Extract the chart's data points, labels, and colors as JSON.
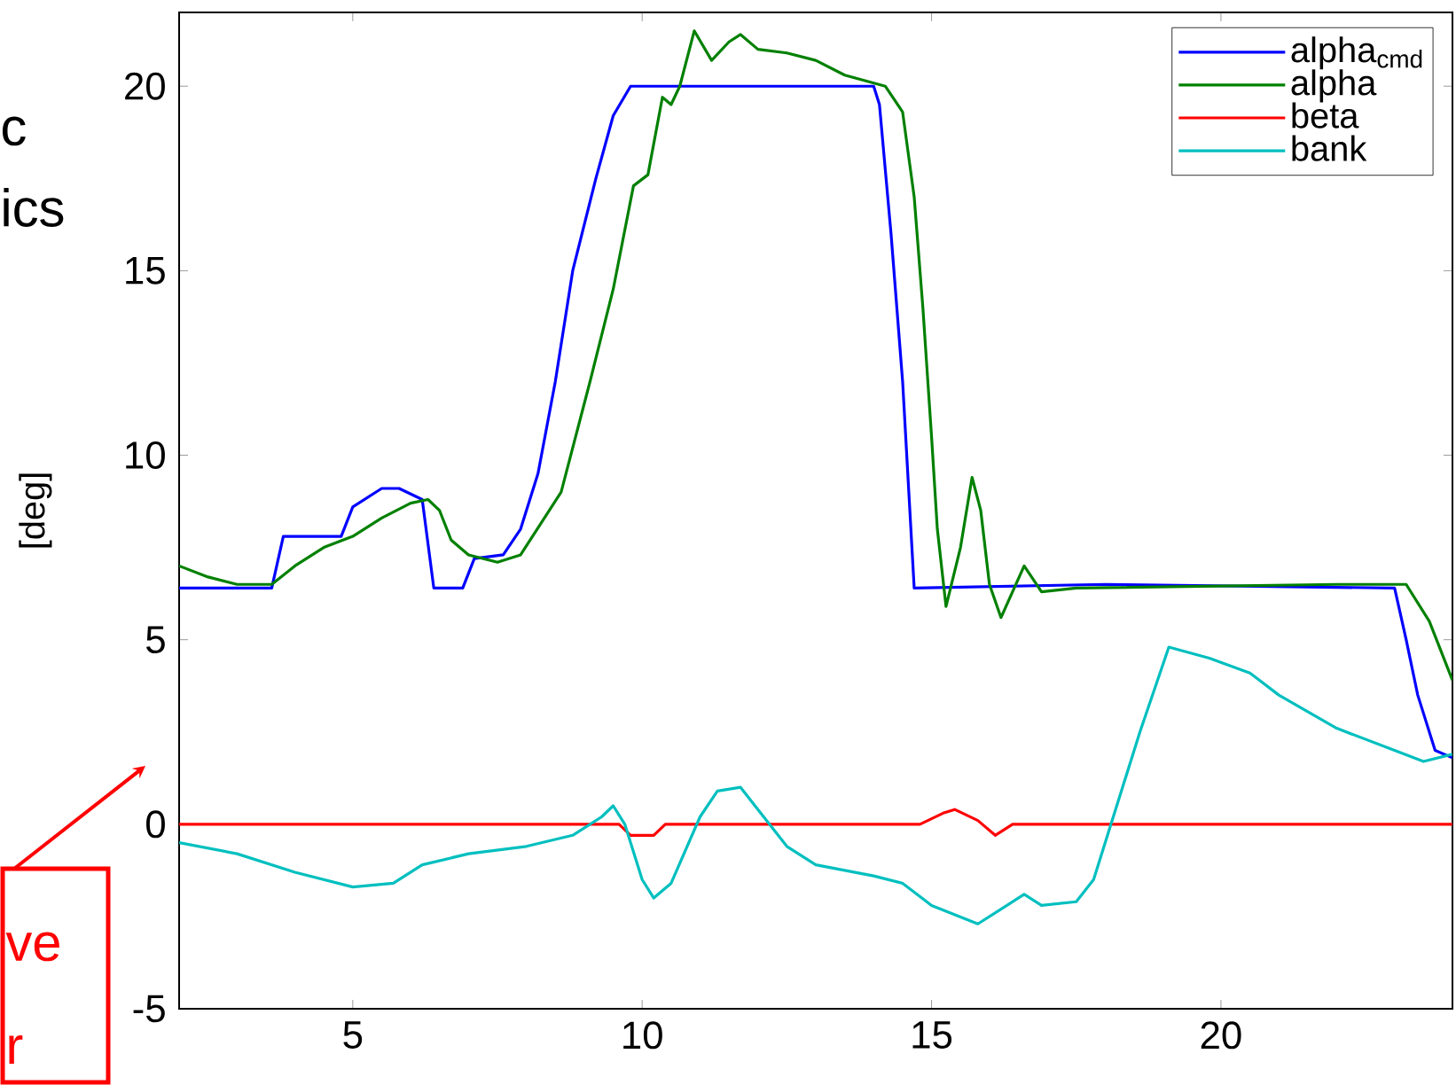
{
  "chart_data": {
    "type": "line",
    "ylabel": "[deg]",
    "xlim": [
      2,
      24
    ],
    "xticks": [
      5,
      10,
      15,
      20
    ],
    "ylim": [
      -5,
      22
    ],
    "yticks": [
      -5,
      0,
      5,
      10,
      15,
      20
    ],
    "legend": "top right",
    "grid": false,
    "annotations": [
      "c",
      "ics",
      "ve",
      "r"
    ],
    "series": [
      {
        "name": "alpha$_{cmd}$",
        "color": "#0000ff",
        "x": [
          2,
          3.6,
          3.8,
          4.8,
          5.0,
          5.5,
          5.8,
          6.2,
          6.4,
          6.9,
          7.1,
          7.6,
          7.9,
          8.2,
          8.5,
          8.8,
          9.2,
          9.5,
          9.8,
          14.0,
          14.1,
          14.3,
          14.5,
          14.7,
          18,
          23.0,
          23.2,
          23.4,
          23.7,
          24
        ],
        "values": [
          6.4,
          6.4,
          7.8,
          7.8,
          8.6,
          9.1,
          9.1,
          8.8,
          6.4,
          6.4,
          7.2,
          7.3,
          8.0,
          9.5,
          12,
          15,
          17.5,
          19.2,
          20,
          20,
          19.5,
          16,
          12,
          6.4,
          6.5,
          6.4,
          5,
          3.5,
          2.0,
          1.8
        ]
      },
      {
        "name": "alpha",
        "color": "#008000",
        "x": [
          2,
          2.5,
          3.0,
          3.6,
          4.0,
          4.5,
          5.0,
          5.5,
          6.0,
          6.3,
          6.5,
          6.7,
          7.0,
          7.5,
          7.9,
          8.6,
          9.1,
          9.5,
          9.85,
          10.1,
          10.35,
          10.5,
          10.65,
          10.9,
          11.2,
          11.5,
          11.7,
          12.0,
          12.5,
          13.0,
          13.5,
          14.2,
          14.5,
          14.7,
          14.85,
          15.0,
          15.1,
          15.25,
          15.5,
          15.7,
          15.85,
          16.0,
          16.2,
          16.4,
          16.6,
          16.9,
          17.5,
          22,
          23.2,
          23.6,
          24
        ],
        "values": [
          7.0,
          6.7,
          6.5,
          6.5,
          7.0,
          7.5,
          7.8,
          8.3,
          8.7,
          8.8,
          8.5,
          7.7,
          7.3,
          7.1,
          7.3,
          9,
          12,
          14.5,
          17.3,
          17.6,
          19.7,
          19.5,
          20,
          21.5,
          20.7,
          21.2,
          21.4,
          21.0,
          20.9,
          20.7,
          20.3,
          20.0,
          19.3,
          17,
          14,
          10.5,
          8,
          5.9,
          7.5,
          9.4,
          8.5,
          6.5,
          5.6,
          6.3,
          7.0,
          6.3,
          6.4,
          6.5,
          6.5,
          5.5,
          3.9
        ]
      },
      {
        "name": "beta",
        "color": "#ff0000",
        "x": [
          2,
          9.6,
          9.8,
          10.2,
          10.4,
          14.8,
          15.2,
          15.4,
          15.8,
          16.1,
          16.4,
          24
        ],
        "values": [
          0,
          0,
          -0.3,
          -0.3,
          0,
          0,
          0.3,
          0.4,
          0.1,
          -0.3,
          0,
          0
        ]
      },
      {
        "name": "bank",
        "color": "#00bfbf",
        "x": [
          2,
          3,
          4,
          5,
          5.7,
          6.2,
          7.0,
          8.0,
          8.8,
          9.3,
          9.5,
          9.7,
          10.0,
          10.2,
          10.5,
          11.0,
          11.3,
          11.7,
          12.0,
          12.5,
          13,
          14,
          14.5,
          15,
          15.8,
          16.2,
          16.6,
          16.9,
          17.5,
          17.8,
          18.1,
          18.6,
          19.1,
          19.8,
          20.5,
          21,
          22,
          23,
          23.5,
          24
        ],
        "values": [
          -0.5,
          -0.8,
          -1.3,
          -1.7,
          -1.6,
          -1.1,
          -0.8,
          -0.6,
          -0.3,
          0.2,
          0.5,
          0.0,
          -1.5,
          -2.0,
          -1.6,
          0.2,
          0.9,
          1.0,
          0.4,
          -0.6,
          -1.1,
          -1.4,
          -1.6,
          -2.2,
          -2.7,
          -2.3,
          -1.9,
          -2.2,
          -2.1,
          -1.5,
          0.0,
          2.5,
          4.8,
          4.5,
          4.1,
          3.5,
          2.6,
          2.0,
          1.7,
          1.9
        ]
      }
    ]
  }
}
